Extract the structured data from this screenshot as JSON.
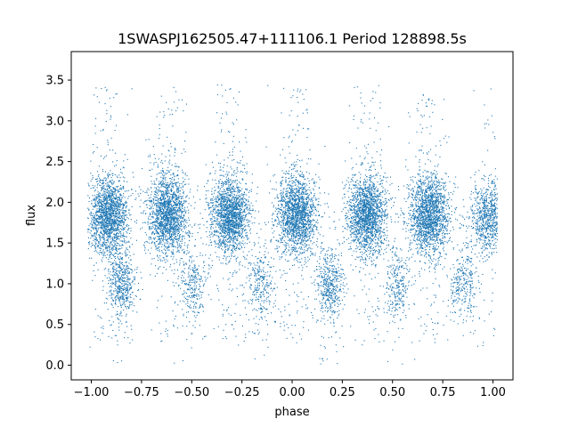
{
  "chart_data": {
    "type": "scatter",
    "title": "1SWASPJ162505.47+111106.1 Period 128898.5s",
    "xlabel": "phase",
    "ylabel": "flux",
    "xlim": [
      -1.1,
      1.1
    ],
    "ylim": [
      -0.18,
      3.85
    ],
    "x_ticks": [
      -1.0,
      -0.75,
      -0.5,
      -0.25,
      0.0,
      0.25,
      0.5,
      0.75,
      1.0
    ],
    "x_tick_labels": [
      "−1.00",
      "−0.75",
      "−0.50",
      "−0.25",
      "0.00",
      "0.25",
      "0.50",
      "0.75",
      "1.00"
    ],
    "y_ticks": [
      0.0,
      0.5,
      1.0,
      1.5,
      2.0,
      2.5,
      3.0,
      3.5
    ],
    "y_tick_labels": [
      "0.0",
      "0.5",
      "1.0",
      "1.5",
      "2.0",
      "2.5",
      "3.0",
      "3.5"
    ],
    "grid": false,
    "marker_color": "#1f77b4",
    "clusters": [
      {
        "x": -0.92,
        "y": 1.82,
        "n": 1800
      },
      {
        "x": -0.62,
        "y": 1.85,
        "n": 1800
      },
      {
        "x": -0.31,
        "y": 1.85,
        "n": 1800
      },
      {
        "x": 0.02,
        "y": 1.85,
        "n": 1800
      },
      {
        "x": 0.37,
        "y": 1.85,
        "n": 1800
      },
      {
        "x": 0.68,
        "y": 1.85,
        "n": 1800
      },
      {
        "x": 0.98,
        "y": 1.82,
        "n": 900
      },
      {
        "x": -0.85,
        "y": 1.0,
        "n": 500
      },
      {
        "x": -0.5,
        "y": 1.0,
        "n": 300
      },
      {
        "x": -0.16,
        "y": 1.0,
        "n": 300
      },
      {
        "x": 0.18,
        "y": 1.0,
        "n": 500
      },
      {
        "x": 0.52,
        "y": 1.0,
        "n": 300
      },
      {
        "x": 0.85,
        "y": 1.0,
        "n": 300
      }
    ]
  }
}
